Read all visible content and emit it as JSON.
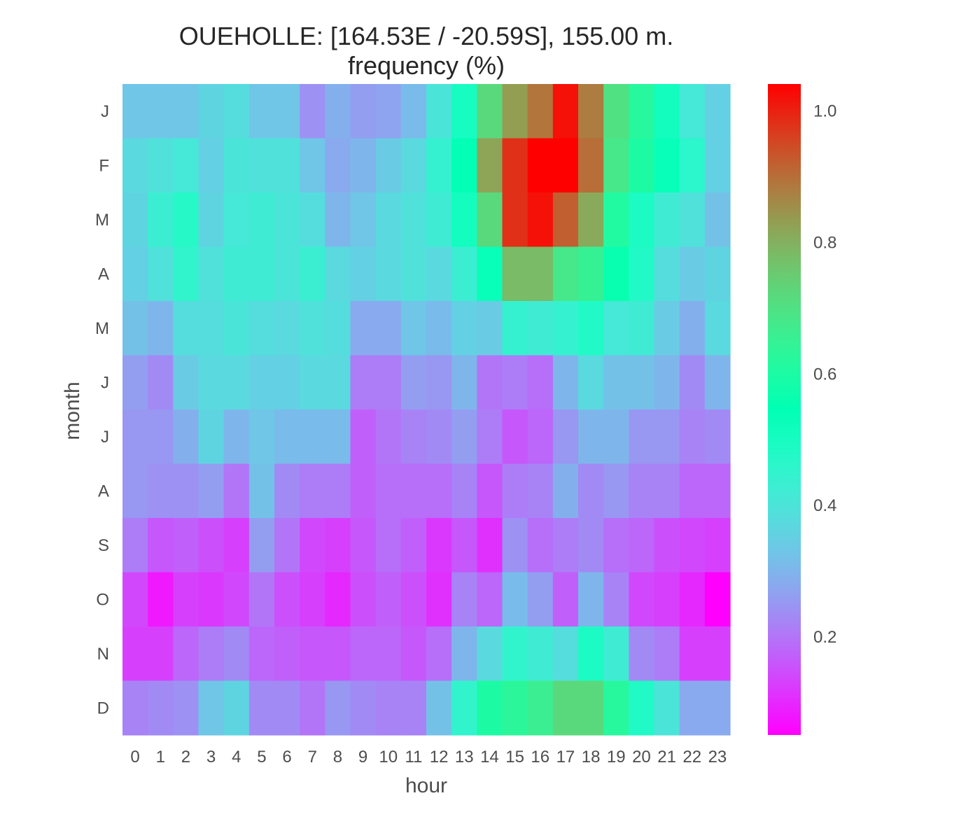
{
  "chart_data": {
    "type": "heatmap",
    "title": "OUEHOLLE: [164.53E / -20.59S], 155.00 m.",
    "subtitle": "frequency (%)",
    "xlabel": "hour",
    "ylabel": "month",
    "x_categories": [
      "0",
      "1",
      "2",
      "3",
      "4",
      "5",
      "6",
      "7",
      "8",
      "9",
      "10",
      "11",
      "12",
      "13",
      "14",
      "15",
      "16",
      "17",
      "18",
      "19",
      "20",
      "21",
      "22",
      "23"
    ],
    "y_categories": [
      "J",
      "F",
      "M",
      "A",
      "M",
      "J",
      "J",
      "A",
      "S",
      "O",
      "N",
      "D"
    ],
    "colormap": "rainbow",
    "color_range": [
      0.05,
      1.04
    ],
    "colorbar_ticks": [
      "0.2",
      "0.4",
      "0.6",
      "0.8",
      "1.0"
    ],
    "colorbar_tick_values": [
      0.2,
      0.4,
      0.6,
      0.8,
      1.0
    ],
    "grid": false,
    "values": [
      [
        0.33,
        0.33,
        0.33,
        0.36,
        0.38,
        0.33,
        0.33,
        0.24,
        0.29,
        0.26,
        0.27,
        0.31,
        0.4,
        0.5,
        0.72,
        0.83,
        0.89,
        1.02,
        0.88,
        0.7,
        0.62,
        0.51,
        0.41,
        0.35
      ],
      [
        0.37,
        0.39,
        0.41,
        0.35,
        0.4,
        0.39,
        0.39,
        0.33,
        0.28,
        0.3,
        0.34,
        0.37,
        0.44,
        0.54,
        0.82,
        0.98,
        1.04,
        1.04,
        0.9,
        0.68,
        0.6,
        0.53,
        0.46,
        0.35
      ],
      [
        0.36,
        0.43,
        0.47,
        0.36,
        0.41,
        0.42,
        0.4,
        0.38,
        0.3,
        0.33,
        0.37,
        0.39,
        0.42,
        0.51,
        0.72,
        0.98,
        1.02,
        0.92,
        0.81,
        0.61,
        0.49,
        0.42,
        0.39,
        0.32
      ],
      [
        0.35,
        0.39,
        0.45,
        0.39,
        0.42,
        0.42,
        0.4,
        0.43,
        0.37,
        0.35,
        0.37,
        0.39,
        0.37,
        0.43,
        0.53,
        0.78,
        0.78,
        0.68,
        0.65,
        0.56,
        0.48,
        0.38,
        0.34,
        0.36
      ],
      [
        0.32,
        0.3,
        0.38,
        0.38,
        0.4,
        0.38,
        0.37,
        0.39,
        0.38,
        0.28,
        0.28,
        0.33,
        0.31,
        0.35,
        0.34,
        0.44,
        0.42,
        0.44,
        0.48,
        0.41,
        0.42,
        0.34,
        0.29,
        0.37
      ],
      [
        0.26,
        0.23,
        0.34,
        0.37,
        0.37,
        0.35,
        0.35,
        0.37,
        0.37,
        0.21,
        0.21,
        0.26,
        0.25,
        0.3,
        0.2,
        0.21,
        0.19,
        0.3,
        0.37,
        0.32,
        0.32,
        0.3,
        0.23,
        0.3
      ],
      [
        0.25,
        0.25,
        0.29,
        0.36,
        0.3,
        0.33,
        0.31,
        0.31,
        0.31,
        0.17,
        0.2,
        0.22,
        0.23,
        0.26,
        0.21,
        0.16,
        0.18,
        0.25,
        0.3,
        0.3,
        0.25,
        0.25,
        0.22,
        0.23
      ],
      [
        0.25,
        0.24,
        0.24,
        0.26,
        0.2,
        0.32,
        0.23,
        0.21,
        0.21,
        0.17,
        0.19,
        0.19,
        0.19,
        0.22,
        0.16,
        0.21,
        0.22,
        0.29,
        0.23,
        0.25,
        0.22,
        0.22,
        0.18,
        0.18
      ],
      [
        0.21,
        0.16,
        0.17,
        0.15,
        0.13,
        0.26,
        0.2,
        0.14,
        0.13,
        0.16,
        0.19,
        0.17,
        0.12,
        0.16,
        0.11,
        0.24,
        0.19,
        0.21,
        0.23,
        0.19,
        0.18,
        0.15,
        0.14,
        0.13
      ],
      [
        0.14,
        0.08,
        0.13,
        0.12,
        0.14,
        0.2,
        0.15,
        0.13,
        0.1,
        0.15,
        0.17,
        0.15,
        0.11,
        0.22,
        0.18,
        0.31,
        0.26,
        0.17,
        0.3,
        0.22,
        0.14,
        0.13,
        0.1,
        0.05
      ],
      [
        0.13,
        0.13,
        0.18,
        0.21,
        0.23,
        0.18,
        0.17,
        0.16,
        0.16,
        0.18,
        0.18,
        0.16,
        0.19,
        0.3,
        0.37,
        0.45,
        0.42,
        0.38,
        0.49,
        0.42,
        0.23,
        0.21,
        0.13,
        0.13
      ],
      [
        0.22,
        0.23,
        0.24,
        0.33,
        0.36,
        0.23,
        0.23,
        0.2,
        0.25,
        0.23,
        0.22,
        0.22,
        0.32,
        0.45,
        0.6,
        0.63,
        0.66,
        0.72,
        0.72,
        0.62,
        0.48,
        0.4,
        0.28,
        0.28
      ]
    ]
  }
}
